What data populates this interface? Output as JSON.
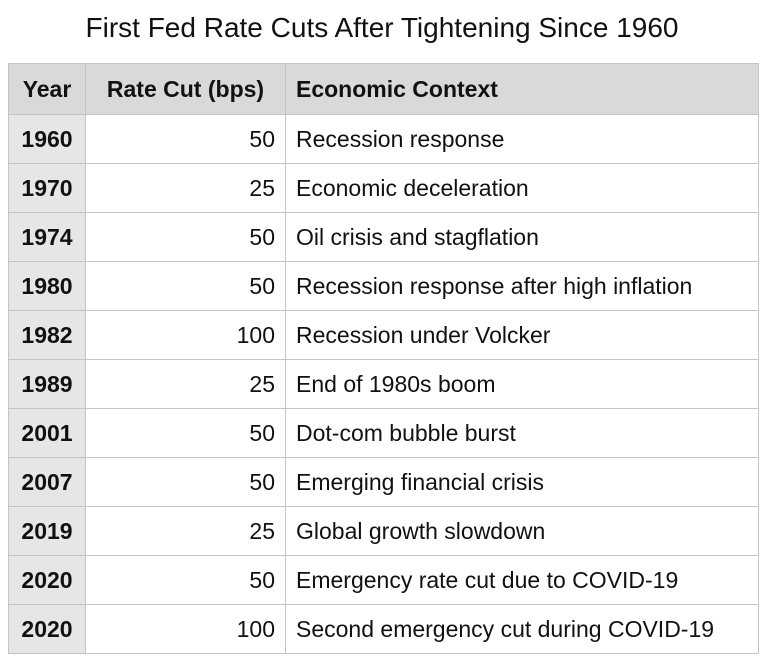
{
  "chart_data": {
    "type": "table",
    "title": "First Fed Rate Cuts After Tightening Since 1960",
    "columns": [
      "Year",
      "Rate Cut (bps)",
      "Economic Context"
    ],
    "rows": [
      [
        "1960",
        "50",
        "Recession response"
      ],
      [
        "1970",
        "25",
        "Economic deceleration"
      ],
      [
        "1974",
        "50",
        "Oil crisis and stagflation"
      ],
      [
        "1980",
        "50",
        "Recession response after high inflation"
      ],
      [
        "1982",
        "100",
        "Recession under Volcker"
      ],
      [
        "1989",
        "25",
        "End of 1980s boom"
      ],
      [
        "2001",
        "50",
        "Dot-com bubble burst"
      ],
      [
        "2007",
        "50",
        "Emerging financial crisis"
      ],
      [
        "2019",
        "25",
        "Global growth slowdown"
      ],
      [
        "2020",
        "50",
        "Emergency rate cut due to COVID-19"
      ],
      [
        "2020",
        "100",
        "Second emergency cut during COVID-19"
      ]
    ]
  },
  "colors": {
    "header_bg": "#d9d9d9",
    "year_col_bg": "#e6e6e6",
    "cell_bg": "#ffffff",
    "grid": "#c4c4c4",
    "text": "#111111"
  }
}
